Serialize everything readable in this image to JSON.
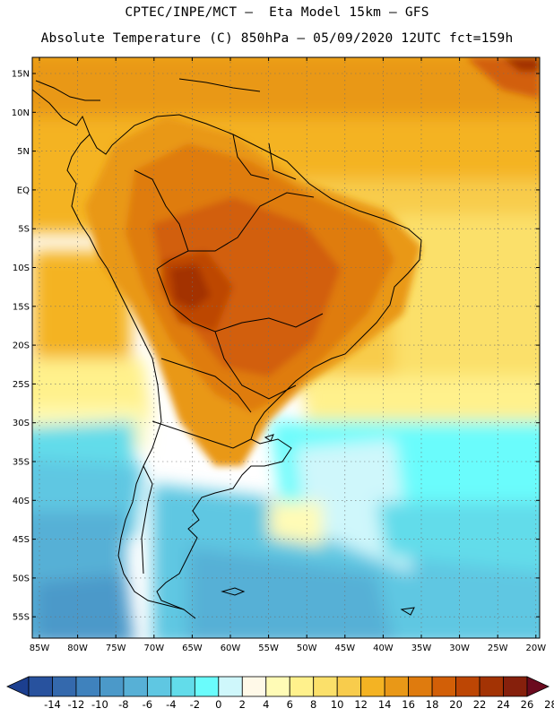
{
  "header": {
    "line1": "CPTEC/INPE/MCT –  Eta Model 15km – GFS",
    "line2": "Absolute Temperature (C) 850hPa – 05/09/2020 12UTC fct=159h"
  },
  "map": {
    "lat_labels": [
      "15N",
      "10N",
      "5N",
      "EQ",
      "5S",
      "10S",
      "15S",
      "20S",
      "25S",
      "30S",
      "35S",
      "40S",
      "45S",
      "50S",
      "55S"
    ],
    "lon_labels": [
      "85W",
      "80W",
      "75W",
      "70W",
      "65W",
      "60W",
      "55W",
      "50W",
      "45W",
      "40W",
      "35W",
      "30W",
      "25W",
      "20W"
    ]
  },
  "colorbar": {
    "labels": [
      "-14",
      "-12",
      "-10",
      "-8",
      "-6",
      "-4",
      "-2",
      "0",
      "2",
      "4",
      "6",
      "8",
      "10",
      "12",
      "14",
      "16",
      "18",
      "20",
      "22",
      "24",
      "26",
      "28"
    ],
    "colors": [
      "#1c3f8f",
      "#28529e",
      "#3469ad",
      "#3f82bd",
      "#4b99c9",
      "#57b0d6",
      "#5fc7e2",
      "#62dcea",
      "#6afcfc",
      "#cff7fb",
      "#fff9e8",
      "#fffbb6",
      "#fff18c",
      "#fbe06a",
      "#f8cc4c",
      "#f4b323",
      "#e99817",
      "#df7b0e",
      "#d25f07",
      "#bd4604",
      "#a33304",
      "#86200c",
      "#6b0a1e"
    ]
  }
}
